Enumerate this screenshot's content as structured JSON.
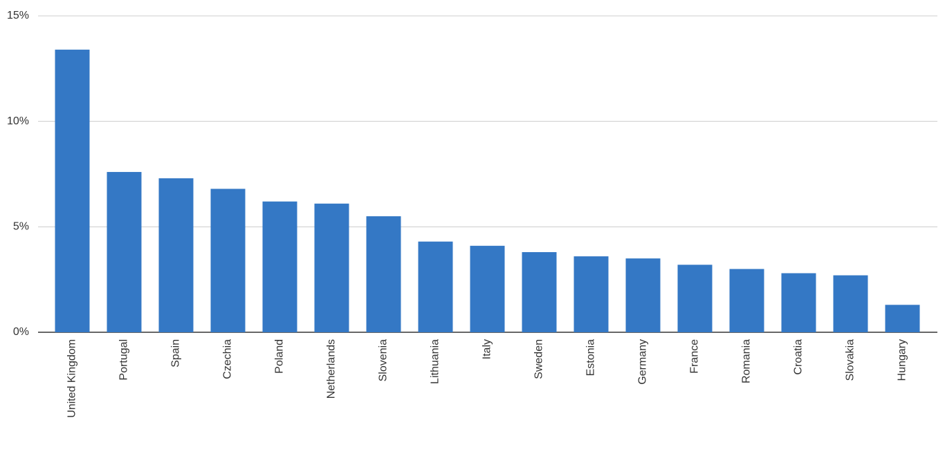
{
  "chart_data": {
    "type": "bar",
    "categories": [
      "United Kingdom",
      "Portugal",
      "Spain",
      "Czechia",
      "Poland",
      "Netherlands",
      "Slovenia",
      "Lithuania",
      "Italy",
      "Sweden",
      "Estonia",
      "Germany",
      "France",
      "Romania",
      "Croatia",
      "Slovakia",
      "Hungary"
    ],
    "values": [
      13.4,
      7.6,
      7.3,
      6.8,
      6.2,
      6.1,
      5.5,
      4.3,
      4.1,
      3.8,
      3.6,
      3.5,
      3.2,
      3.0,
      2.8,
      2.7,
      1.3
    ],
    "color": "#3478c5",
    "ylim": [
      0,
      15
    ],
    "yticks": [
      {
        "value": 0,
        "label": "0%"
      },
      {
        "value": 5,
        "label": "5%"
      },
      {
        "value": 10,
        "label": "10%"
      },
      {
        "value": 15,
        "label": "15%"
      }
    ],
    "grid": true
  }
}
